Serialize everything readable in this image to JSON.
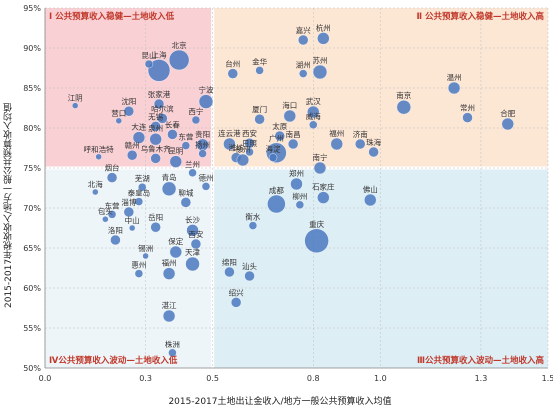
{
  "chart_data": {
    "type": "scatter",
    "xlabel": "2015-2017土地出让金收入/地方一般公共预算收入均值",
    "ylabel": "2015-2017年税收收入/地方一般公共预算收入均值",
    "xlim": [
      0.0,
      1.5
    ],
    "ylim": [
      50,
      95
    ],
    "x_ticks": [
      "0.0",
      "0.3",
      "0.5",
      "0.8",
      "1.0",
      "1.3",
      "1.5"
    ],
    "x_tick_values": [
      0.0,
      0.3,
      0.5,
      0.8,
      1.0,
      1.3,
      1.5
    ],
    "y_ticks": [
      "50%",
      "55%",
      "60%",
      "65%",
      "70%",
      "75%",
      "80%",
      "85%",
      "90%",
      "95%"
    ],
    "y_tick_values": [
      50,
      55,
      60,
      65,
      70,
      75,
      80,
      85,
      90,
      95
    ],
    "quadrant_split": {
      "x": 0.5,
      "y": 75
    },
    "quadrants": [
      {
        "id": "I",
        "label": "Ⅰ 公共预算收入稳健—土地收入低",
        "color": "#f9d0d4",
        "position": "top-left"
      },
      {
        "id": "II",
        "label": "Ⅱ 公共预算收入稳健—土地收入高",
        "color": "#fce6d4",
        "position": "top-right"
      },
      {
        "id": "III",
        "label": "Ⅲ公共预算收入波动—土地收入高",
        "color": "#ddeef5",
        "position": "bottom-right"
      },
      {
        "id": "IV",
        "label": "Ⅳ公共预算收入波动—土地收入低",
        "color": "#eef5f9",
        "position": "bottom-left"
      }
    ],
    "bubble_color": "#4a78c0",
    "quadrant_label_color": "#c0392b",
    "grid": true,
    "points": [
      {
        "name": "上海",
        "x": 0.34,
        "y": 87.2,
        "r": 11
      },
      {
        "name": "北京",
        "x": 0.4,
        "y": 88.5,
        "r": 10
      },
      {
        "name": "昆山",
        "x": 0.31,
        "y": 88.0,
        "r": 4
      },
      {
        "name": "杭州",
        "x": 0.83,
        "y": 91.2,
        "r": 6
      },
      {
        "name": "嘉兴",
        "x": 0.77,
        "y": 91.0,
        "r": 5
      },
      {
        "name": "苏州",
        "x": 0.82,
        "y": 87.0,
        "r": 7
      },
      {
        "name": "湖州",
        "x": 0.77,
        "y": 86.8,
        "r": 4
      },
      {
        "name": "金华",
        "x": 0.64,
        "y": 87.2,
        "r": 4
      },
      {
        "name": "台州",
        "x": 0.56,
        "y": 86.8,
        "r": 5
      },
      {
        "name": "温州",
        "x": 1.22,
        "y": 85.0,
        "r": 6
      },
      {
        "name": "南京",
        "x": 1.07,
        "y": 82.6,
        "r": 7
      },
      {
        "name": "常州",
        "x": 1.26,
        "y": 81.3,
        "r": 5
      },
      {
        "name": "合肥",
        "x": 1.38,
        "y": 80.5,
        "r": 6
      },
      {
        "name": "江阴",
        "x": 0.09,
        "y": 82.8,
        "r": 3
      },
      {
        "name": "张家港",
        "x": 0.34,
        "y": 83.0,
        "r": 5
      },
      {
        "name": "宁波",
        "x": 0.48,
        "y": 83.3,
        "r": 7
      },
      {
        "name": "沈阳",
        "x": 0.25,
        "y": 82.1,
        "r": 5
      },
      {
        "name": "哈尔滨",
        "x": 0.35,
        "y": 81.2,
        "r": 5
      },
      {
        "name": "西宁",
        "x": 0.45,
        "y": 81.0,
        "r": 4
      },
      {
        "name": "营口",
        "x": 0.22,
        "y": 80.9,
        "r": 3
      },
      {
        "name": "无锡",
        "x": 0.33,
        "y": 80.2,
        "r": 5
      },
      {
        "name": "厦门",
        "x": 0.64,
        "y": 81.1,
        "r": 5
      },
      {
        "name": "海口",
        "x": 0.73,
        "y": 81.5,
        "r": 6
      },
      {
        "name": "武汉",
        "x": 0.8,
        "y": 82.0,
        "r": 6
      },
      {
        "name": "威海",
        "x": 0.8,
        "y": 80.4,
        "r": 4
      },
      {
        "name": "大连",
        "x": 0.28,
        "y": 78.8,
        "r": 6
      },
      {
        "name": "泉州",
        "x": 0.33,
        "y": 78.6,
        "r": 6
      },
      {
        "name": "长春",
        "x": 0.38,
        "y": 79.2,
        "r": 5
      },
      {
        "name": "东营",
        "x": 0.42,
        "y": 77.8,
        "r": 4
      },
      {
        "name": "贵阳",
        "x": 0.47,
        "y": 77.9,
        "r": 6
      },
      {
        "name": "太原",
        "x": 0.7,
        "y": 79.0,
        "r": 5
      },
      {
        "name": "连云港",
        "x": 0.55,
        "y": 78.0,
        "r": 6
      },
      {
        "name": "西安",
        "x": 0.61,
        "y": 78.1,
        "r": 5
      },
      {
        "name": "南昌",
        "x": 0.74,
        "y": 78.0,
        "r": 5
      },
      {
        "name": "福州",
        "x": 0.87,
        "y": 78.0,
        "r": 6
      },
      {
        "name": "济南",
        "x": 0.94,
        "y": 78.0,
        "r": 5
      },
      {
        "name": "珠海",
        "x": 0.98,
        "y": 77.0,
        "r": 5
      },
      {
        "name": "广州",
        "x": 0.69,
        "y": 76.9,
        "r": 10
      },
      {
        "name": "呼和浩特",
        "x": 0.16,
        "y": 76.4,
        "r": 3
      },
      {
        "name": "赣州",
        "x": 0.26,
        "y": 76.6,
        "r": 5
      },
      {
        "name": "乌鲁木齐",
        "x": 0.33,
        "y": 76.2,
        "r": 5
      },
      {
        "name": "昆明",
        "x": 0.39,
        "y": 75.8,
        "r": 6
      },
      {
        "name": "扬州",
        "x": 0.47,
        "y": 76.8,
        "r": 4
      },
      {
        "name": "潍坊",
        "x": 0.57,
        "y": 76.3,
        "r": 5
      },
      {
        "name": "徐州",
        "x": 0.59,
        "y": 76.0,
        "r": 6
      },
      {
        "name": "日照",
        "x": 0.61,
        "y": 77.0,
        "r": 4
      },
      {
        "name": "海淀",
        "x": 0.68,
        "y": 76.3,
        "r": 4
      },
      {
        "name": "南宁",
        "x": 0.82,
        "y": 75.0,
        "r": 6
      },
      {
        "name": "兰州",
        "x": 0.44,
        "y": 74.4,
        "r": 4
      },
      {
        "name": "烟台",
        "x": 0.2,
        "y": 73.8,
        "r": 5
      },
      {
        "name": "芜湖",
        "x": 0.29,
        "y": 72.6,
        "r": 4
      },
      {
        "name": "青岛",
        "x": 0.37,
        "y": 72.4,
        "r": 7
      },
      {
        "name": "德州",
        "x": 0.48,
        "y": 72.7,
        "r": 4
      },
      {
        "name": "郑州",
        "x": 0.75,
        "y": 73.0,
        "r": 6
      },
      {
        "name": "佛山",
        "x": 0.97,
        "y": 71.0,
        "r": 6
      },
      {
        "name": "北海",
        "x": 0.15,
        "y": 72.0,
        "r": 3
      },
      {
        "name": "泰皇岛",
        "x": 0.28,
        "y": 70.8,
        "r": 4
      },
      {
        "name": "聊城",
        "x": 0.42,
        "y": 70.7,
        "r": 5
      },
      {
        "name": "成都",
        "x": 0.69,
        "y": 70.5,
        "r": 9
      },
      {
        "name": "柳州",
        "x": 0.76,
        "y": 70.4,
        "r": 4
      },
      {
        "name": "石家庄",
        "x": 0.83,
        "y": 71.3,
        "r": 6
      },
      {
        "name": "东营",
        "x": 0.2,
        "y": 69.2,
        "r": 4
      },
      {
        "name": "淄博",
        "x": 0.25,
        "y": 69.5,
        "r": 5
      },
      {
        "name": "包头",
        "x": 0.18,
        "y": 68.6,
        "r": 3
      },
      {
        "name": "中山",
        "x": 0.26,
        "y": 67.5,
        "r": 3
      },
      {
        "name": "岳阳",
        "x": 0.33,
        "y": 67.6,
        "r": 5
      },
      {
        "name": "长沙",
        "x": 0.44,
        "y": 67.2,
        "r": 6
      },
      {
        "name": "衡水",
        "x": 0.62,
        "y": 67.8,
        "r": 4
      },
      {
        "name": "洛阳",
        "x": 0.21,
        "y": 66.0,
        "r": 5
      },
      {
        "name": "重庆",
        "x": 0.81,
        "y": 65.9,
        "r": 12
      },
      {
        "name": "西安",
        "x": 0.45,
        "y": 65.5,
        "r": 5
      },
      {
        "name": "保定",
        "x": 0.39,
        "y": 64.5,
        "r": 6
      },
      {
        "name": "锡洲",
        "x": 0.3,
        "y": 64.0,
        "r": 3
      },
      {
        "name": "天津",
        "x": 0.44,
        "y": 63.0,
        "r": 7
      },
      {
        "name": "福州",
        "x": 0.37,
        "y": 61.8,
        "r": 6
      },
      {
        "name": "惠州",
        "x": 0.28,
        "y": 61.8,
        "r": 4
      },
      {
        "name": "绵阳",
        "x": 0.55,
        "y": 62.0,
        "r": 5
      },
      {
        "name": "汕头",
        "x": 0.61,
        "y": 61.5,
        "r": 5
      },
      {
        "name": "绍兴",
        "x": 0.57,
        "y": 58.2,
        "r": 5
      },
      {
        "name": "湛江",
        "x": 0.37,
        "y": 56.5,
        "r": 6
      },
      {
        "name": "株洲",
        "x": 0.38,
        "y": 51.9,
        "r": 4
      }
    ]
  }
}
